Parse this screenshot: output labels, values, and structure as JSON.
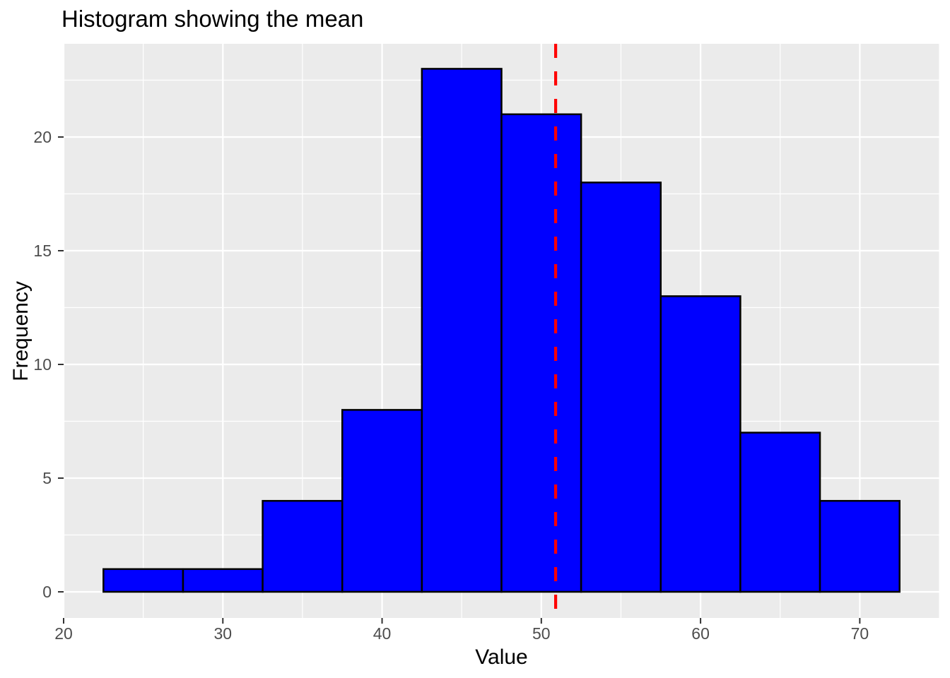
{
  "chart_data": {
    "type": "bar",
    "subtype": "histogram",
    "title": "Histogram showing the mean",
    "xlabel": "Value",
    "ylabel": "Frequency",
    "bin_edges": [
      22.5,
      27.5,
      32.5,
      37.5,
      42.5,
      47.5,
      52.5,
      57.5,
      62.5,
      67.5,
      72.5
    ],
    "frequencies": [
      1,
      1,
      4,
      8,
      23,
      21,
      18,
      13,
      7,
      4
    ],
    "total_count": 100,
    "mean_line_x": 50.9,
    "mean_line_style": "dashed",
    "x_ticks": [
      20,
      30,
      40,
      50,
      60,
      70
    ],
    "y_ticks": [
      0,
      5,
      10,
      15,
      20
    ],
    "x_minor_ticks": [
      25,
      35,
      45,
      55,
      65,
      75
    ],
    "y_minor_ticks": [
      2.5,
      7.5,
      12.5,
      17.5,
      22.5
    ],
    "xlim": [
      20,
      75
    ],
    "ylim": [
      -1.15,
      24.1
    ],
    "grid": true,
    "legend_position": "none",
    "colors": {
      "bar_fill": "#0000FF",
      "bar_stroke": "#000000",
      "mean_line": "#FF0000",
      "panel_bg": "#EBEBEB",
      "grid": "#FFFFFF",
      "tick_label": "#4D4D4D",
      "tick_mark": "#333333",
      "title_text": "#000000"
    }
  }
}
